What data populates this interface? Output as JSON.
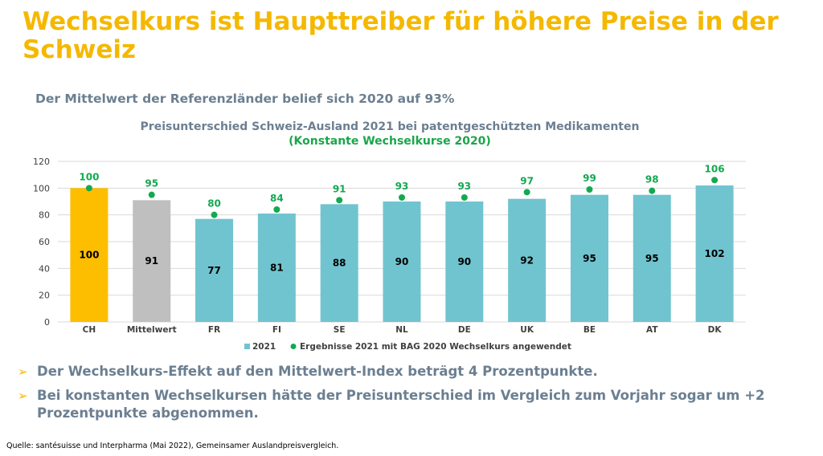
{
  "title": "Wechselkurs ist Haupttreiber für höhere Preise in der Schweiz",
  "subtitle": "Der Mittelwert der Referenzländer belief sich 2020 auf 93%",
  "chart_data": {
    "type": "bar",
    "title": "Preisunterschied Schweiz-Ausland 2021 bei patentgeschützten Medikamenten",
    "subtitle": "(Konstante Wechselkurse 2020)",
    "categories": [
      "CH",
      "Mittelwert",
      "FR",
      "FI",
      "SE",
      "NL",
      "DE",
      "UK",
      "BE",
      "AT",
      "DK"
    ],
    "series": [
      {
        "name": "2021",
        "type": "bar",
        "values": [
          100,
          91,
          77,
          81,
          88,
          90,
          90,
          92,
          95,
          95,
          102
        ]
      },
      {
        "name": "Ergebnisse 2021 mit BAG 2020 Wechselkurs angewendet",
        "type": "scatter",
        "values": [
          100,
          95,
          80,
          84,
          91,
          93,
          93,
          97,
          99,
          98,
          106
        ]
      }
    ],
    "bar_colors": [
      "#FDBE00",
      "#BFBFBF",
      "#70C4CF",
      "#70C4CF",
      "#70C4CF",
      "#70C4CF",
      "#70C4CF",
      "#70C4CF",
      "#70C4CF",
      "#70C4CF",
      "#70C4CF"
    ],
    "dot_color": "#13A951",
    "ylim": [
      0,
      120
    ],
    "yticks": [
      0,
      20,
      40,
      60,
      80,
      100,
      120
    ],
    "legend_position": "bottom",
    "grid": true
  },
  "bullets": [
    "Der Wechselkurs-Effekt auf den Mittelwert-Index beträgt 4 Prozentpunkte.",
    "Bei konstanten Wechselkursen hätte der Preisunterschied im Vergleich zum Vorjahr sogar um +2 Prozentpunkte abgenommen."
  ],
  "source": "Quelle: santésuisse und Interpharma (Mai 2022), Gemeinsamer Auslandpreisvergleich."
}
